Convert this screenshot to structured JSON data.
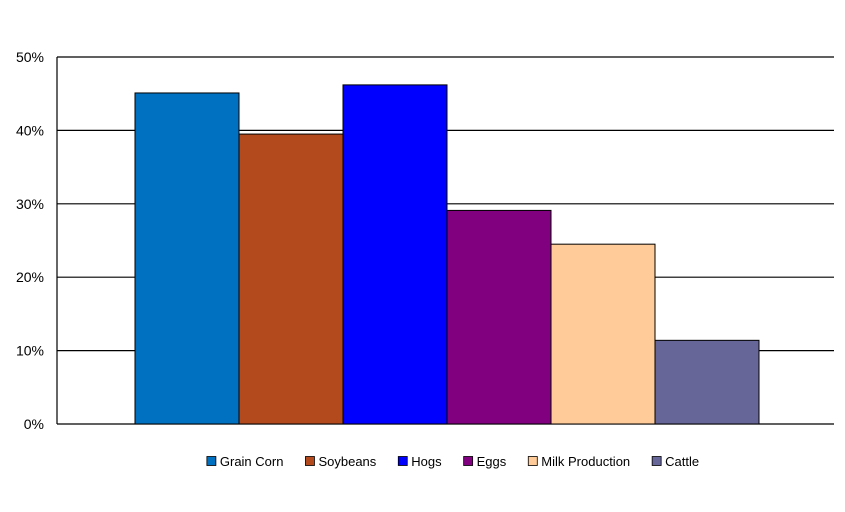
{
  "chart_data": {
    "type": "bar",
    "title": "",
    "xlabel": "",
    "ylabel": "",
    "ylim": [
      0,
      50
    ],
    "yticks": [
      "0%",
      "10%",
      "20%",
      "30%",
      "40%",
      "50%"
    ],
    "grid": true,
    "legend_position": "bottom",
    "series": [
      {
        "name": "Grain Corn",
        "value": 45.1,
        "color": "#0070C0"
      },
      {
        "name": "Soybeans",
        "value": 39.5,
        "color": "#B24A1E"
      },
      {
        "name": "Hogs",
        "value": 46.2,
        "color": "#0000FF"
      },
      {
        "name": "Eggs",
        "value": 29.1,
        "color": "#800080"
      },
      {
        "name": "Milk Production",
        "value": 24.5,
        "color": "#FFCC99"
      },
      {
        "name": "Cattle",
        "value": 11.4,
        "color": "#666699"
      }
    ]
  }
}
